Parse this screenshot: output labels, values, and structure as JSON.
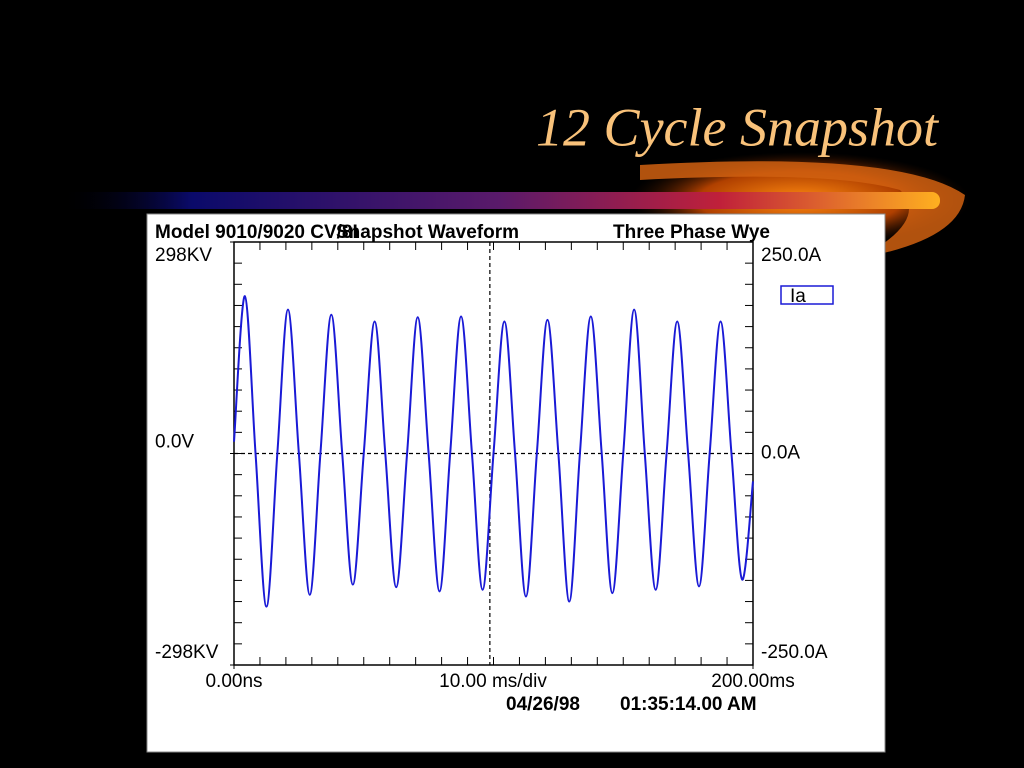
{
  "chart_data": {
    "type": "line",
    "title": "12 Cycle Snapshot",
    "header": [
      "Model 9010/9020 CV/8I",
      "Snapshot Waveform",
      "Three Phase Wye"
    ],
    "x": [
      0,
      4.2,
      8.3,
      12.5,
      16.7,
      20.8,
      25,
      29.2,
      33.3,
      37.5,
      41.7,
      45.8,
      50,
      54.2,
      58.3,
      62.5,
      66.7,
      70.8,
      75,
      79.2,
      83.3,
      87.5,
      91.7,
      95.8,
      100,
      104.2,
      108.3,
      112.5,
      116.7,
      120.8,
      125,
      129.2,
      133.3,
      137.5,
      141.7,
      145.8,
      150,
      154.2,
      158.3,
      162.5,
      166.7,
      170.8,
      175,
      179.2,
      183.3,
      187.5,
      191.7,
      195.8,
      200
    ],
    "series": [
      {
        "name": "Ia",
        "color": "#1a1ad6",
        "values": [
          14,
          186,
          0,
          -181,
          0,
          170,
          0,
          -167,
          0,
          164,
          0,
          -155,
          0,
          156,
          0,
          -158,
          0,
          161,
          0,
          -163,
          0,
          162,
          0,
          -161,
          0,
          156,
          0,
          -169,
          0,
          158,
          0,
          -175,
          0,
          162,
          0,
          -165,
          0,
          170,
          0,
          -161,
          0,
          156,
          0,
          -157,
          0,
          156,
          0,
          -149,
          -33
        ]
      }
    ],
    "xlim": [
      0,
      200
    ],
    "xticks": [
      {
        "value": 0,
        "label": "0.00ns"
      },
      {
        "value": 200,
        "label": "200.00ms"
      }
    ],
    "x_scale_label": "10.00 ms/div",
    "ylim": [
      -250,
      250
    ],
    "yticks": [
      {
        "value": 250,
        "label": "250.0A"
      },
      {
        "value": 0,
        "label": "0.0A"
      },
      {
        "value": -250,
        "label": "-250.0A"
      }
    ],
    "y2lim": [
      -298,
      298
    ],
    "y2ticks": [
      {
        "value": 298,
        "label": "298KV"
      },
      {
        "value": 0,
        "label": "0.0V"
      },
      {
        "value": -298,
        "label": "-298KV"
      }
    ],
    "cursor_x": 98.6,
    "date": "04/26/98",
    "time": "01:35:14.00 AM"
  }
}
